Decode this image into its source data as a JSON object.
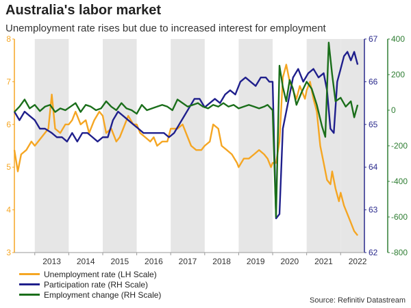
{
  "header": {
    "title": "Australia's labor market",
    "subtitle": "Unemployment rate rises but due to increased interest for employment"
  },
  "source": "Source: Refinitiv Datastream",
  "colors": {
    "unemployment": "#f5a623",
    "participation": "#1f1f8c",
    "employment": "#1a6e1a",
    "band": "#e6e6e6",
    "left_axis": "#f5a623",
    "right_axis_1": "#2a2a8c",
    "right_axis_2": "#2e7d32"
  },
  "chart_data": {
    "type": "line",
    "title": "Australia's labor market",
    "subtitle": "Unemployment rate rises but due to increased interest for employment",
    "x_range": [
      2012.4,
      2022.7
    ],
    "year_labels": [
      "2013",
      "2014",
      "2015",
      "2016",
      "2017",
      "2018",
      "2019",
      "2020",
      "2021",
      "2022"
    ],
    "shaded_years": [
      "2013",
      "2015",
      "2017",
      "2019",
      "2021"
    ],
    "left_axis": {
      "ylim": [
        3,
        8
      ],
      "ticks": [
        "3",
        "4",
        "5",
        "6",
        "7",
        "8"
      ]
    },
    "right_axis_1": {
      "ylim": [
        62,
        67
      ],
      "ticks": [
        "62",
        "63",
        "64",
        "65",
        "66",
        "67"
      ]
    },
    "right_axis_2": {
      "ylim": [
        -800,
        400
      ],
      "ticks": [
        "-800",
        "-600",
        "-400",
        "-200",
        "0",
        "200",
        "400"
      ]
    },
    "legend": [
      "Unemployment rate (LH Scale)",
      "Participation rate (RH Scale)",
      "Employment change (RH Scale)"
    ],
    "series": [
      {
        "name": "Unemployment rate (LH Scale)",
        "axis": "left",
        "x": [
          2012.4,
          2012.5,
          2012.6,
          2012.75,
          2012.9,
          2013.0,
          2013.2,
          2013.4,
          2013.5,
          2013.6,
          2013.75,
          2013.9,
          2014.0,
          2014.1,
          2014.2,
          2014.35,
          2014.5,
          2014.6,
          2014.75,
          2014.9,
          2015.0,
          2015.1,
          2015.25,
          2015.4,
          2015.5,
          2015.6,
          2015.75,
          2015.9,
          2016.0,
          2016.1,
          2016.25,
          2016.4,
          2016.5,
          2016.6,
          2016.75,
          2016.9,
          2017.0,
          2017.2,
          2017.35,
          2017.5,
          2017.6,
          2017.75,
          2017.9,
          2018.0,
          2018.15,
          2018.25,
          2018.4,
          2018.5,
          2018.65,
          2018.8,
          2018.95,
          2019.0,
          2019.15,
          2019.3,
          2019.45,
          2019.6,
          2019.75,
          2019.85,
          2019.95,
          2020.0,
          2020.1,
          2020.2,
          2020.3,
          2020.4,
          2020.5,
          2020.6,
          2020.7,
          2020.8,
          2020.95,
          2021.0,
          2021.1,
          2021.2,
          2021.3,
          2021.4,
          2021.5,
          2021.6,
          2021.7,
          2021.75,
          2021.85,
          2021.95,
          2022.0,
          2022.1,
          2022.2,
          2022.3,
          2022.4,
          2022.5
        ],
        "values": [
          5.4,
          4.9,
          5.3,
          5.4,
          5.6,
          5.5,
          5.7,
          5.9,
          6.7,
          5.9,
          5.8,
          6.0,
          6.0,
          6.1,
          6.3,
          6.0,
          6.1,
          5.8,
          6.1,
          6.3,
          6.2,
          5.8,
          5.9,
          5.6,
          5.7,
          5.9,
          6.2,
          6.0,
          6.0,
          5.8,
          5.7,
          5.6,
          5.7,
          5.5,
          5.6,
          5.6,
          5.9,
          5.9,
          6.0,
          5.7,
          5.5,
          5.4,
          5.4,
          5.5,
          5.6,
          6.0,
          5.9,
          5.5,
          5.4,
          5.3,
          5.1,
          5.0,
          5.2,
          5.2,
          5.3,
          5.4,
          5.3,
          5.2,
          5.0,
          5.1,
          5.1,
          5.6,
          7.1,
          7.4,
          7.0,
          6.8,
          6.6,
          6.9,
          6.6,
          6.8,
          7.0,
          6.6,
          6.3,
          5.5,
          5.1,
          4.7,
          4.6,
          4.9,
          4.5,
          4.2,
          4.4,
          4.1,
          3.9,
          3.7,
          3.5,
          3.4
        ]
      },
      {
        "name": "Participation rate (RH Scale)",
        "axis": "right_1",
        "x": [
          2012.4,
          2012.55,
          2012.7,
          2012.85,
          2013.0,
          2013.15,
          2013.3,
          2013.5,
          2013.65,
          2013.8,
          2013.95,
          2014.1,
          2014.25,
          2014.4,
          2014.55,
          2014.7,
          2014.85,
          2015.0,
          2015.15,
          2015.3,
          2015.45,
          2015.6,
          2015.75,
          2015.9,
          2016.05,
          2016.2,
          2016.35,
          2016.5,
          2016.65,
          2016.8,
          2016.95,
          2017.1,
          2017.25,
          2017.4,
          2017.55,
          2017.7,
          2017.85,
          2018.0,
          2018.15,
          2018.3,
          2018.45,
          2018.6,
          2018.75,
          2018.9,
          2019.05,
          2019.2,
          2019.35,
          2019.5,
          2019.65,
          2019.8,
          2019.9,
          2020.0,
          2020.1,
          2020.2,
          2020.3,
          2020.45,
          2020.6,
          2020.75,
          2020.9,
          2021.05,
          2021.2,
          2021.35,
          2021.5,
          2021.6,
          2021.7,
          2021.8,
          2021.9,
          2022.0,
          2022.1,
          2022.2,
          2022.3,
          2022.4,
          2022.5
        ],
        "values": [
          65.3,
          65.1,
          65.3,
          65.2,
          65.1,
          64.9,
          64.9,
          64.8,
          64.7,
          64.7,
          64.6,
          64.8,
          64.6,
          64.8,
          64.8,
          64.7,
          64.6,
          64.7,
          64.7,
          65.1,
          65.3,
          65.2,
          65.1,
          65.0,
          64.9,
          64.8,
          64.8,
          64.8,
          64.8,
          64.8,
          64.7,
          64.8,
          65.0,
          65.2,
          65.4,
          65.6,
          65.6,
          65.4,
          65.5,
          65.6,
          65.5,
          65.7,
          65.8,
          65.7,
          66.0,
          66.1,
          66.0,
          65.9,
          66.1,
          66.1,
          66.0,
          66.0,
          62.8,
          62.9,
          64.9,
          65.5,
          66.1,
          66.3,
          66.0,
          66.2,
          66.3,
          66.1,
          66.2,
          65.8,
          64.9,
          64.8,
          66.0,
          66.3,
          66.6,
          66.7,
          66.5,
          66.7,
          66.4
        ]
      },
      {
        "name": "Employment change (RH Scale)",
        "axis": "right_2",
        "x": [
          2012.4,
          2012.55,
          2012.7,
          2012.85,
          2013.0,
          2013.15,
          2013.3,
          2013.45,
          2013.6,
          2013.75,
          2013.9,
          2014.05,
          2014.2,
          2014.35,
          2014.5,
          2014.65,
          2014.8,
          2014.95,
          2015.1,
          2015.25,
          2015.4,
          2015.55,
          2015.7,
          2015.85,
          2016.0,
          2016.15,
          2016.3,
          2016.45,
          2016.6,
          2016.75,
          2016.9,
          2017.05,
          2017.2,
          2017.35,
          2017.5,
          2017.65,
          2017.8,
          2017.95,
          2018.1,
          2018.25,
          2018.4,
          2018.55,
          2018.7,
          2018.85,
          2019.0,
          2019.15,
          2019.3,
          2019.45,
          2019.6,
          2019.75,
          2019.85,
          2020.0,
          2020.1,
          2020.2,
          2020.3,
          2020.4,
          2020.5,
          2020.6,
          2020.7,
          2020.85,
          2021.0,
          2021.15,
          2021.3,
          2021.45,
          2021.55,
          2021.65,
          2021.75,
          2021.85,
          2022.0,
          2022.15,
          2022.3,
          2022.4,
          2022.5
        ],
        "values": [
          -10,
          20,
          60,
          10,
          30,
          -5,
          20,
          30,
          -10,
          10,
          0,
          20,
          40,
          -10,
          30,
          20,
          0,
          10,
          50,
          20,
          0,
          40,
          10,
          0,
          -20,
          30,
          0,
          10,
          20,
          30,
          20,
          0,
          60,
          40,
          20,
          30,
          40,
          20,
          10,
          30,
          20,
          40,
          20,
          30,
          10,
          20,
          30,
          20,
          10,
          20,
          30,
          0,
          -600,
          250,
          130,
          50,
          170,
          120,
          30,
          100,
          160,
          120,
          30,
          -90,
          -150,
          380,
          200,
          50,
          70,
          20,
          50,
          -40,
          30
        ]
      }
    ]
  }
}
